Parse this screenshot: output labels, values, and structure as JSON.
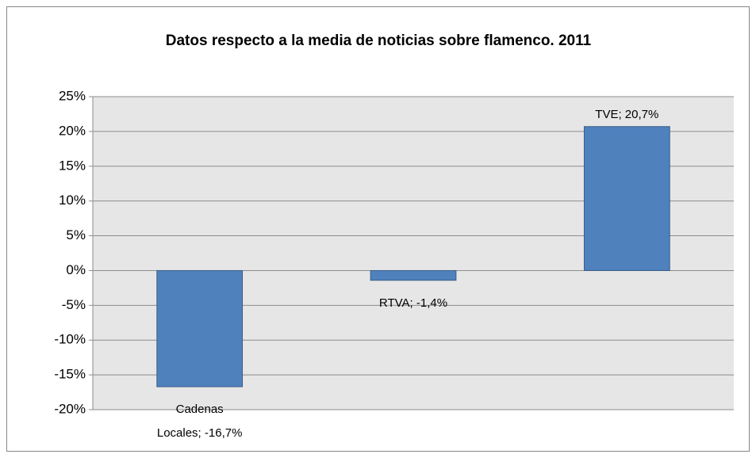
{
  "chart_data": {
    "type": "bar",
    "title": "Datos respecto a la media de noticias sobre flamenco. 2011",
    "values": [
      -16.7,
      -1.4,
      20.7
    ],
    "value_labels": [
      "Cadenas Locales; -16,7%",
      "RTVA; -1,4%",
      "TVE; 20,7%"
    ],
    "color": "#4f81bd",
    "ylim": [
      -20,
      25
    ],
    "yticks": [
      {
        "value": -20,
        "label": "-20%"
      },
      {
        "value": -15,
        "label": "-15%"
      },
      {
        "value": -10,
        "label": "-10%"
      },
      {
        "value": -5,
        "label": "-5%"
      },
      {
        "value": 0,
        "label": "0%"
      },
      {
        "value": 5,
        "label": "5%"
      },
      {
        "value": 10,
        "label": "10%"
      },
      {
        "value": 15,
        "label": "15%"
      },
      {
        "value": 20,
        "label": "20%"
      },
      {
        "value": 25,
        "label": "25%"
      }
    ],
    "grid": true
  }
}
